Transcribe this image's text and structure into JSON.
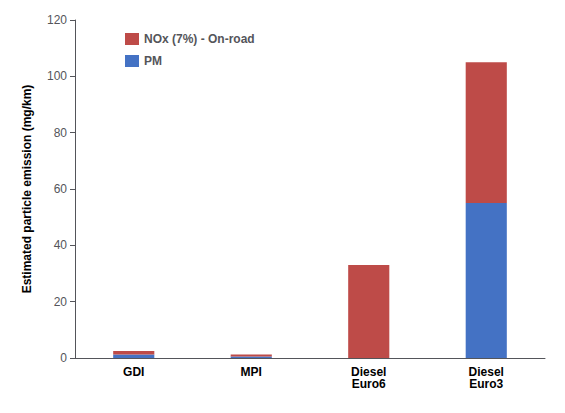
{
  "chart_data": {
    "type": "bar",
    "stacked": true,
    "categories": [
      "GDI",
      "MPI",
      "Diesel\nEuro6",
      "Diesel\nEuro3"
    ],
    "series": [
      {
        "name": "PM",
        "color": "#4472C4",
        "values": [
          1.2,
          0.5,
          0.0,
          55.0
        ]
      },
      {
        "name": "NOx (7%) - On-road",
        "color": "#BE4B48",
        "values": [
          1.3,
          0.7,
          33.0,
          50.0
        ]
      }
    ],
    "ylabel": "Estimated particle emission (mg/km)",
    "ylim": [
      0,
      120
    ],
    "yticks": [
      0,
      20,
      40,
      60,
      80,
      100,
      120
    ],
    "grid": false,
    "legend": "upper left"
  }
}
